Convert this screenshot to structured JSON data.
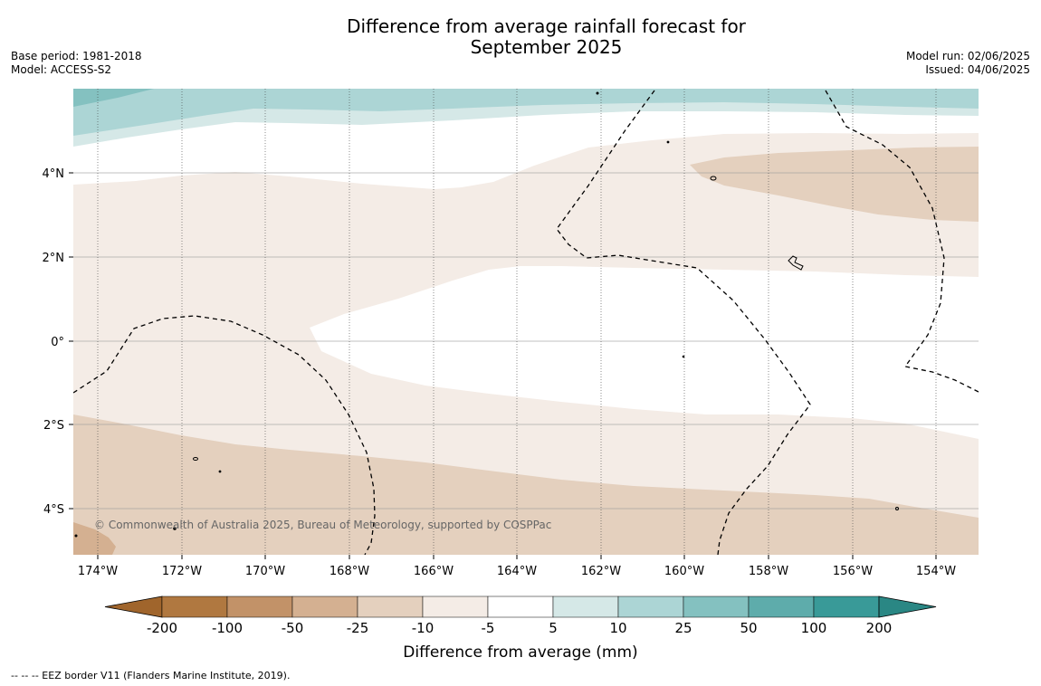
{
  "title_line1": "Difference from average rainfall forecast for",
  "title_line2": "September 2025",
  "meta_left": {
    "base_period": "Base period: 1981-2018",
    "model": "Model: ACCESS-S2"
  },
  "meta_right": {
    "model_run": "Model run: 02/06/2025",
    "issued": "Issued: 04/06/2025"
  },
  "copyright": "© Commonwealth of Australia 2025, Bureau of Meteorology, supported by COSPPac",
  "lon_ticks": [
    "174°W",
    "172°W",
    "170°W",
    "168°W",
    "166°W",
    "164°W",
    "162°W",
    "160°W",
    "158°W",
    "156°W",
    "154°W"
  ],
  "lat_ticks": [
    "4°N",
    "2°N",
    "0°",
    "2°S",
    "4°S"
  ],
  "colorbar": {
    "label": "Difference from average (mm)",
    "ticks": [
      "-200",
      "-100",
      "-50",
      "-25",
      "-10",
      "-5",
      "5",
      "10",
      "25",
      "50",
      "100",
      "200"
    ],
    "colors": [
      "#a0652c",
      "#b07840",
      "#c29268",
      "#d4b091",
      "#e4d0be",
      "#f4ece6",
      "#ffffff",
      "#d5e8e7",
      "#acd5d5",
      "#84c1c0",
      "#5eacab",
      "#399a98",
      "#2a8784"
    ]
  },
  "footer": "--  --  -- EEZ border V11 (Flanders Marine Institute, 2019)."
}
